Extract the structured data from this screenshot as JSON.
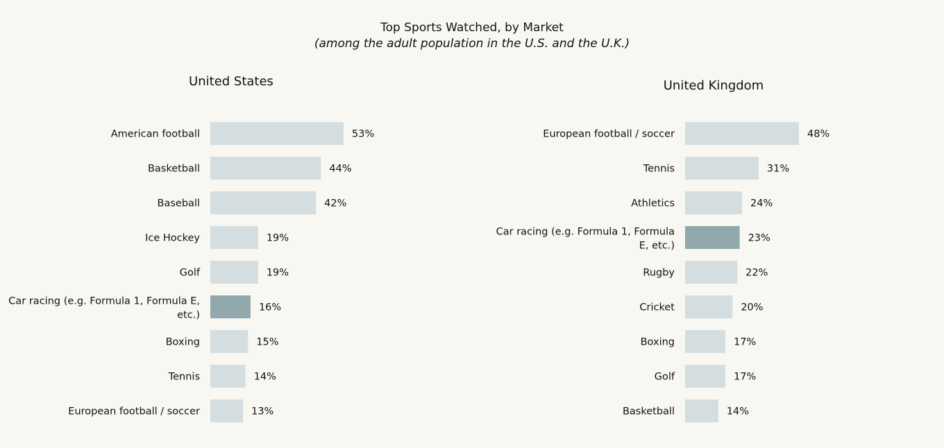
{
  "chart_data": [
    {
      "type": "bar",
      "orientation": "horizontal",
      "title": "Top Sports Watched, by Market",
      "subtitle": "(among the adult population in the U.S. and the U.K.)",
      "panel_title": "United States",
      "categories": [
        [
          "American football"
        ],
        [
          "Basketball"
        ],
        [
          "Baseball"
        ],
        [
          "Ice Hockey"
        ],
        [
          "Golf"
        ],
        [
          "Car racing (e.g. Formula 1, Formula E,",
          "etc.)"
        ],
        [
          "Boxing"
        ],
        [
          "Tennis"
        ],
        [
          "European football / soccer"
        ]
      ],
      "values": [
        53,
        44,
        42,
        19,
        19,
        16,
        15,
        14,
        13
      ],
      "labels": [
        "53%",
        "44%",
        "42%",
        "19%",
        "19%",
        "16%",
        "15%",
        "14%",
        "13%"
      ],
      "highlight_index": 5,
      "unit": "%"
    },
    {
      "type": "bar",
      "orientation": "horizontal",
      "panel_title": "United Kingdom",
      "categories": [
        [
          "European football / soccer"
        ],
        [
          "Tennis"
        ],
        [
          "Athletics"
        ],
        [
          "Car racing (e.g. Formula 1, Formula",
          "E, etc.)"
        ],
        [
          "Rugby"
        ],
        [
          "Cricket"
        ],
        [
          "Boxing"
        ],
        [
          "Golf"
        ],
        [
          "Basketball"
        ]
      ],
      "values": [
        48,
        31,
        24,
        23,
        22,
        20,
        17,
        17,
        14
      ],
      "labels": [
        "48%",
        "31%",
        "24%",
        "23%",
        "22%",
        "20%",
        "17%",
        "17%",
        "14%"
      ],
      "highlight_index": 3,
      "unit": "%"
    }
  ],
  "colors": {
    "bar": "#d4dde0",
    "highlight": "#91a8ad",
    "background": "#f8f7f2"
  }
}
